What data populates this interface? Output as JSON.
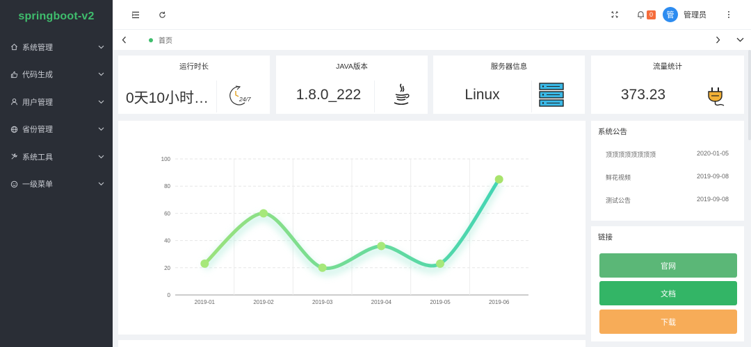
{
  "app": {
    "title": "springboot-v2"
  },
  "sidebar": {
    "items": [
      {
        "label": "系统管理",
        "icon": "home-icon"
      },
      {
        "label": "代码生成",
        "icon": "thumb-icon"
      },
      {
        "label": "用户管理",
        "icon": "user-icon"
      },
      {
        "label": "省份管理",
        "icon": "globe-icon"
      },
      {
        "label": "系统工具",
        "icon": "tools-icon"
      },
      {
        "label": "一级菜单",
        "icon": "smile-icon"
      }
    ]
  },
  "header": {
    "notification_count": "0",
    "avatar_text": "管",
    "username": "管理员"
  },
  "tabs": {
    "home_label": "首页"
  },
  "stats": [
    {
      "title": "运行时长",
      "value": "0天10小时…",
      "icon": "clock-247-icon"
    },
    {
      "title": "JAVA版本",
      "value": "1.8.0_222",
      "icon": "java-icon"
    },
    {
      "title": "服务器信息",
      "value": "Linux",
      "icon": "server-icon"
    },
    {
      "title": "流量统计",
      "value": "373.23",
      "icon": "plug-icon"
    }
  ],
  "notice": {
    "title": "系统公告",
    "items": [
      {
        "title": "顶顶顶顶顶顶顶顶",
        "date": "2020-01-05"
      },
      {
        "title": "鲜花视频",
        "date": "2019-09-08"
      },
      {
        "title": "测试公告",
        "date": "2019-09-08"
      }
    ]
  },
  "links": {
    "title": "链接",
    "items": [
      {
        "label": "官网",
        "color": "#5bb777"
      },
      {
        "label": "文档",
        "color": "#33b566"
      },
      {
        "label": "下载",
        "color": "#f7ac58"
      }
    ]
  },
  "colors": {
    "accent": "#3fbd6d",
    "sidebar_bg": "#2a2e36",
    "badge": "#f56c3b",
    "avatar": "#2d8cf0"
  },
  "chart_data": {
    "type": "line",
    "categories": [
      "2019-01",
      "2019-02",
      "2019-03",
      "2019-04",
      "2019-05",
      "2019-06"
    ],
    "series": [
      {
        "values": [
          23,
          60,
          20,
          36,
          23,
          85
        ]
      }
    ],
    "ylim": [
      0,
      100
    ],
    "yticks": [
      0,
      20,
      40,
      60,
      80,
      100
    ],
    "smooth": true,
    "grid": true,
    "color_start": "#9be27c",
    "color_end": "#43d5b4"
  }
}
